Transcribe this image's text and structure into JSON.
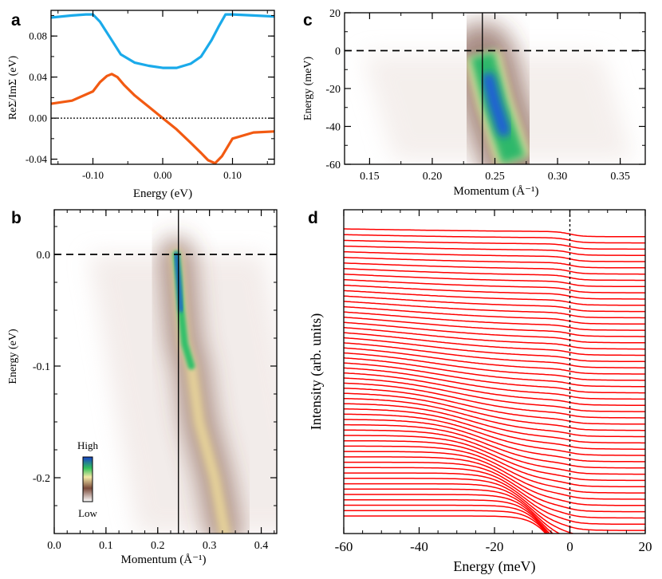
{
  "chart_data": [
    {
      "id": "a",
      "type": "line",
      "panel_label": "a",
      "xlabel": "Energy (eV)",
      "ylabel": "ReΣ/ImΣ (eV)",
      "xlim": [
        -0.16,
        0.16
      ],
      "ylim": [
        -0.045,
        0.105
      ],
      "xticks": [
        -0.1,
        0.0,
        0.1
      ],
      "xtick_labels": [
        "-0.10",
        "0.00",
        "0.10"
      ],
      "yticks": [
        -0.04,
        0.0,
        0.04,
        0.08
      ],
      "ytick_labels": [
        "-0.04",
        "0.00",
        "0.04",
        "0.08"
      ],
      "series": [
        {
          "name": "ImΣ",
          "color": "#1aaaea",
          "x": [
            -0.16,
            -0.13,
            -0.11,
            -0.1,
            -0.09,
            -0.075,
            -0.06,
            -0.04,
            -0.02,
            0.0,
            0.02,
            0.04,
            0.055,
            0.07,
            0.08,
            0.09,
            0.1,
            0.13,
            0.16
          ],
          "y": [
            0.098,
            0.1,
            0.101,
            0.101,
            0.094,
            0.078,
            0.062,
            0.054,
            0.051,
            0.049,
            0.049,
            0.053,
            0.06,
            0.076,
            0.089,
            0.101,
            0.101,
            0.1,
            0.099
          ]
        },
        {
          "name": "ReΣ",
          "color": "#f25a12",
          "x": [
            -0.16,
            -0.13,
            -0.1,
            -0.09,
            -0.08,
            -0.073,
            -0.065,
            -0.055,
            -0.04,
            -0.02,
            0.0,
            0.02,
            0.04,
            0.055,
            0.065,
            0.075,
            0.085,
            0.1,
            0.13,
            0.16
          ],
          "y": [
            0.014,
            0.017,
            0.026,
            0.035,
            0.041,
            0.043,
            0.04,
            0.032,
            0.022,
            0.011,
            0.0,
            -0.011,
            -0.024,
            -0.034,
            -0.041,
            -0.044,
            -0.037,
            -0.02,
            -0.014,
            -0.013
          ]
        }
      ],
      "reference_line": {
        "axis": "y",
        "value": 0.0,
        "style": "dotted"
      }
    },
    {
      "id": "b",
      "type": "heatmap",
      "panel_label": "b",
      "xlabel": "Momentum (Å⁻¹)",
      "ylabel": "Energy (eV)",
      "xlim": [
        0.0,
        0.43
      ],
      "ylim": [
        -0.25,
        0.04
      ],
      "xticks": [
        0.0,
        0.1,
        0.2,
        0.3,
        0.4
      ],
      "xtick_labels": [
        "0.0",
        "0.1",
        "0.2",
        "0.3",
        "0.4"
      ],
      "yticks": [
        -0.2,
        -0.1,
        0.0
      ],
      "ytick_labels": [
        "-0.2",
        "-0.1",
        "0.0"
      ],
      "fermi_level": 0.0,
      "kf_line": 0.24,
      "dispersion": [
        {
          "k": 0.236,
          "e": 0.0
        },
        {
          "k": 0.24,
          "e": -0.02
        },
        {
          "k": 0.245,
          "e": -0.05
        },
        {
          "k": 0.252,
          "e": -0.08
        },
        {
          "k": 0.265,
          "e": -0.1
        },
        {
          "k": 0.28,
          "e": -0.15
        },
        {
          "k": 0.31,
          "e": -0.2
        },
        {
          "k": 0.33,
          "e": -0.25
        }
      ],
      "colorbar": {
        "high_label": "High",
        "low_label": "Low"
      }
    },
    {
      "id": "c",
      "type": "heatmap",
      "panel_label": "c",
      "xlabel": "Momentum (Å⁻¹)",
      "ylabel": "Energy (meV)",
      "xlim": [
        0.13,
        0.37
      ],
      "ylim": [
        -60,
        20
      ],
      "xticks": [
        0.15,
        0.2,
        0.25,
        0.3,
        0.35
      ],
      "xtick_labels": [
        "0.15",
        "0.20",
        "0.25",
        "0.30",
        "0.35"
      ],
      "yticks": [
        -60,
        -40,
        -20,
        0,
        20
      ],
      "ytick_labels": [
        "-60",
        "-40",
        "-20",
        "0",
        "20"
      ],
      "fermi_level": 0,
      "kf_line": 0.24,
      "dispersion": [
        {
          "k": 0.24,
          "e": -2
        },
        {
          "k": 0.245,
          "e": -15
        },
        {
          "k": 0.25,
          "e": -28
        },
        {
          "k": 0.257,
          "e": -42
        },
        {
          "k": 0.265,
          "e": -58
        }
      ]
    },
    {
      "id": "d",
      "type": "line",
      "panel_label": "d",
      "xlabel": "Energy (meV)",
      "ylabel": "Intensity (arb. units)",
      "xlim": [
        -60,
        20
      ],
      "xticks": [
        -60,
        -40,
        -20,
        0,
        20
      ],
      "xtick_labels": [
        "-60",
        "-40",
        "-20",
        "0",
        "20"
      ],
      "curve_count": 55,
      "curve_color": "#ff0000",
      "reference_line": {
        "axis": "x",
        "value": 0,
        "style": "dotted"
      }
    }
  ]
}
